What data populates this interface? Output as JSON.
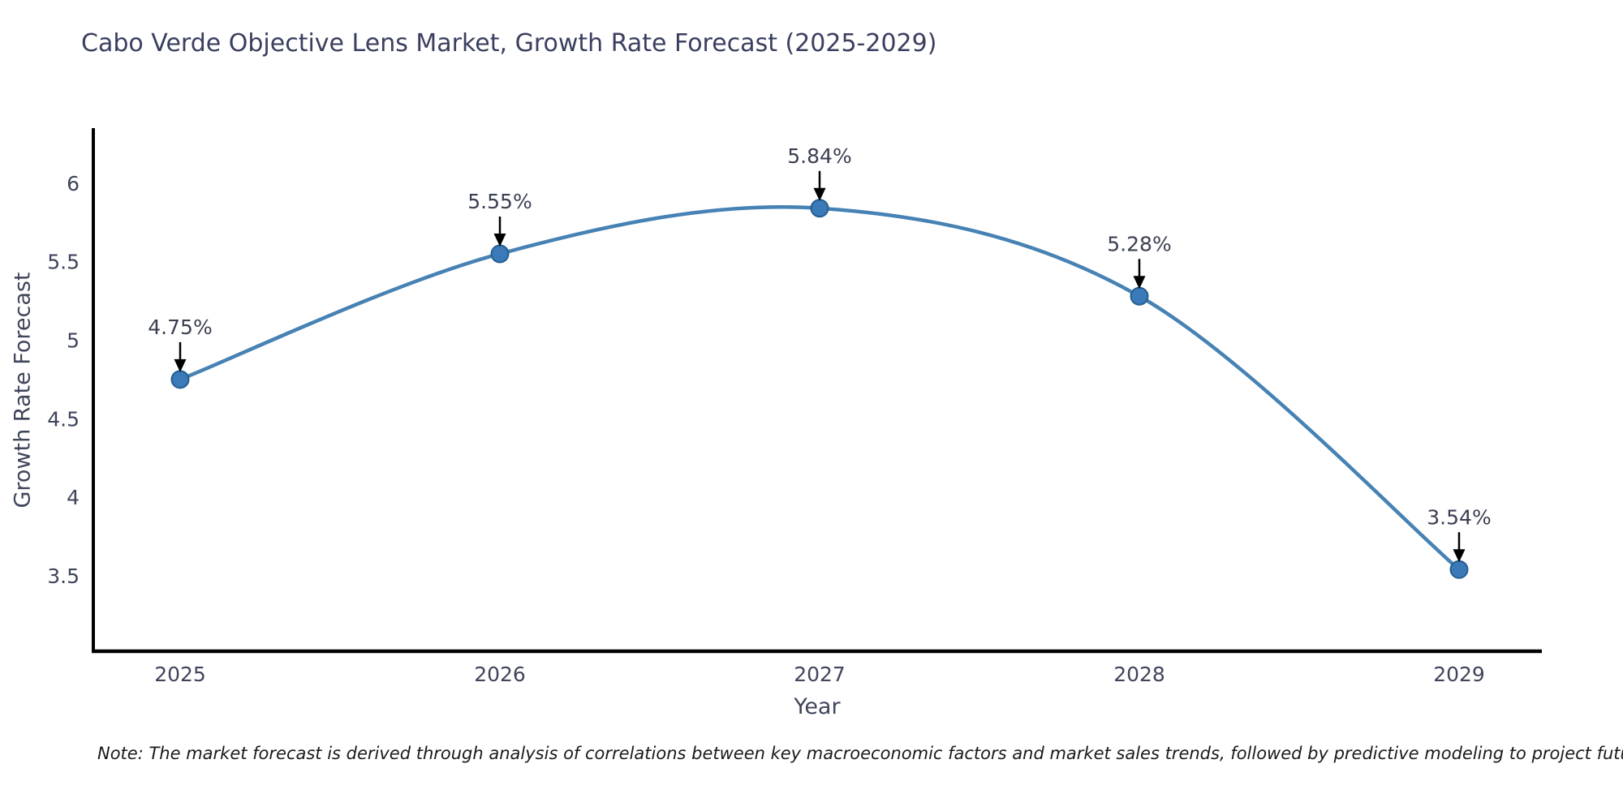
{
  "page": {
    "background": "#ffffff"
  },
  "note": "Note: The market forecast is derived through analysis of correlations between key macroeconomic factors and market sales trends, followed by predictive modeling to project future sales",
  "chart_data": {
    "type": "line",
    "title": "Cabo Verde Objective Lens Market, Growth Rate Forecast (2025-2029)",
    "xlabel": "Year",
    "ylabel": "Growth Rate Forecast",
    "categories": [
      "2025",
      "2026",
      "2027",
      "2028",
      "2029"
    ],
    "values": [
      4.75,
      5.55,
      5.84,
      5.28,
      3.54
    ],
    "point_labels": [
      "4.75%",
      "5.55%",
      "5.84%",
      "5.28%",
      "3.54%"
    ],
    "yticks": [
      3.5,
      4,
      4.5,
      5,
      5.5,
      6
    ],
    "ylim": [
      3.02,
      6.35
    ],
    "grid": false,
    "legend": "none",
    "smooth_curve": true,
    "colors": {
      "line": "#4682b4",
      "marker_fill": "#3a7ab8",
      "marker_edge": "#255e91",
      "axis": "#000000",
      "title": "#3a3f5f",
      "tick": "#3f455a",
      "point_label": "#3a3f52",
      "annotation_arrow": "#000000"
    }
  }
}
